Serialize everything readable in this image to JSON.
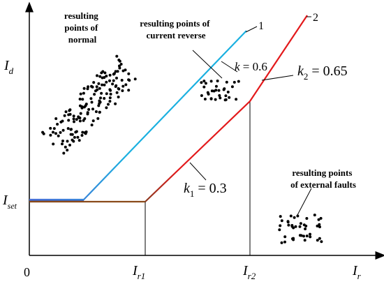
{
  "axes": {
    "origin": "0",
    "y_label": "I",
    "y_sub": "d",
    "x_label": "I",
    "x_sub": "r",
    "iset": "I",
    "iset_sub": "set",
    "ir1": "I",
    "ir1_sub": "r1",
    "ir2": "I",
    "ir2_sub": "r2"
  },
  "curves": {
    "curve1_num": "1",
    "curve2_num": "2",
    "k_label": "k",
    "k_value": " = 0.6",
    "k1_label": "k",
    "k1_sub": "1",
    "k1_value": " = 0.3",
    "k2_label": "k",
    "k2_sub": "2",
    "k2_value": " = 0.65"
  },
  "annotations": {
    "normal": [
      "resulting",
      "points of",
      "normal"
    ],
    "reverse": [
      "resulting points of",
      "current reverse"
    ],
    "external": [
      "resulting points",
      "of external faults"
    ]
  },
  "colors": {
    "curve1": "#1ab0e0",
    "curve1_low": "#4a6fd6",
    "curve2": "#e3191b",
    "curve2_low": "#8a3a20",
    "axis": "#000000"
  }
}
